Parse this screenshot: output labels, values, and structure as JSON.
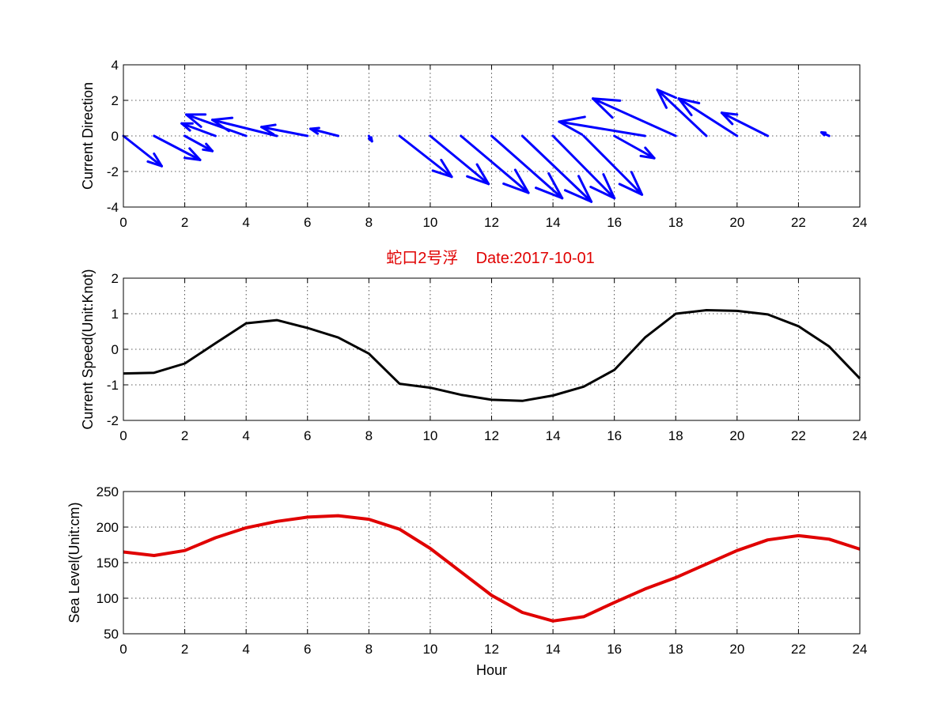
{
  "colors": {
    "arrow": "#0000ff",
    "speed": "#000000",
    "sea": "#e00000",
    "title": "#e00000"
  },
  "title": "蛇口2号浮    Date:2017-10-01",
  "chart_data": [
    {
      "type": "quiver",
      "ylabel": "Current Direction",
      "xlim": [
        0,
        24
      ],
      "ylim": [
        -4,
        4
      ],
      "xticks": [
        0,
        2,
        4,
        6,
        8,
        10,
        12,
        14,
        16,
        18,
        20,
        22,
        24
      ],
      "yticks": [
        -4,
        -2,
        0,
        2,
        4
      ],
      "grid": true,
      "arrows": [
        {
          "x": 0,
          "u": 1.25,
          "v": -1.7
        },
        {
          "x": 1,
          "u": 1.5,
          "v": -1.35
        },
        {
          "x": 2,
          "u": 0.9,
          "v": -0.85
        },
        {
          "x": 3,
          "u": -1.1,
          "v": 0.7
        },
        {
          "x": 4,
          "u": -1.95,
          "v": 1.2
        },
        {
          "x": 5,
          "u": -2.1,
          "v": 0.9
        },
        {
          "x": 6,
          "u": -1.5,
          "v": 0.5
        },
        {
          "x": 7,
          "u": -0.9,
          "v": 0.4
        },
        {
          "x": 8,
          "u": 0.1,
          "v": -0.3
        },
        {
          "x": 9,
          "u": 1.7,
          "v": -2.3
        },
        {
          "x": 10,
          "u": 1.9,
          "v": -2.7
        },
        {
          "x": 11,
          "u": 2.2,
          "v": -3.2
        },
        {
          "x": 12,
          "u": 2.3,
          "v": -3.5
        },
        {
          "x": 13,
          "u": 2.25,
          "v": -3.7
        },
        {
          "x": 14,
          "u": 2.0,
          "v": -3.5
        },
        {
          "x": 15,
          "u": 1.9,
          "v": -3.3
        },
        {
          "x": 16,
          "u": 1.3,
          "v": -1.25
        },
        {
          "x": 17,
          "u": -2.8,
          "v": 0.8
        },
        {
          "x": 18,
          "u": -2.7,
          "v": 2.1
        },
        {
          "x": 19,
          "u": -1.6,
          "v": 2.6
        },
        {
          "x": 20,
          "u": -1.9,
          "v": 2.1
        },
        {
          "x": 21,
          "u": -1.5,
          "v": 1.3
        },
        {
          "x": 22,
          "u": 0.0,
          "v": 0.0
        },
        {
          "x": 23,
          "u": -0.25,
          "v": 0.2
        }
      ]
    },
    {
      "type": "line",
      "ylabel": "Current Speed(Unit:Knot)",
      "xlim": [
        0,
        24
      ],
      "ylim": [
        -2,
        2
      ],
      "xticks": [
        0,
        2,
        4,
        6,
        8,
        10,
        12,
        14,
        16,
        18,
        20,
        22,
        24
      ],
      "yticks": [
        -2,
        -1,
        0,
        1,
        2
      ],
      "grid": true,
      "x": [
        0,
        1,
        2,
        3,
        4,
        5,
        6,
        7,
        8,
        9,
        10,
        11,
        12,
        13,
        14,
        15,
        16,
        17,
        18,
        19,
        20,
        21,
        22,
        23,
        24
      ],
      "y": [
        -0.68,
        -0.66,
        -0.4,
        0.17,
        0.73,
        0.82,
        0.6,
        0.33,
        -0.12,
        -0.97,
        -1.08,
        -1.28,
        -1.42,
        -1.45,
        -1.3,
        -1.05,
        -0.58,
        0.33,
        1.0,
        1.1,
        1.08,
        0.98,
        0.65,
        0.08,
        -0.82
      ],
      "line_width": 3
    },
    {
      "type": "line",
      "ylabel": "Sea Level(Unit:cm)",
      "xlabel": "Hour",
      "xlim": [
        0,
        24
      ],
      "ylim": [
        50,
        250
      ],
      "xticks": [
        0,
        2,
        4,
        6,
        8,
        10,
        12,
        14,
        16,
        18,
        20,
        22,
        24
      ],
      "yticks": [
        50,
        100,
        150,
        200,
        250
      ],
      "grid": true,
      "x": [
        0,
        1,
        2,
        3,
        4,
        5,
        6,
        7,
        8,
        9,
        10,
        11,
        12,
        13,
        14,
        15,
        16,
        17,
        18,
        19,
        20,
        21,
        22,
        23,
        24
      ],
      "y": [
        165,
        160,
        167,
        185,
        199,
        208,
        214,
        216,
        211,
        197,
        170,
        137,
        104,
        80,
        68,
        74,
        94,
        113,
        129,
        148,
        167,
        182,
        188,
        183,
        169
      ],
      "line_width": 4
    }
  ]
}
